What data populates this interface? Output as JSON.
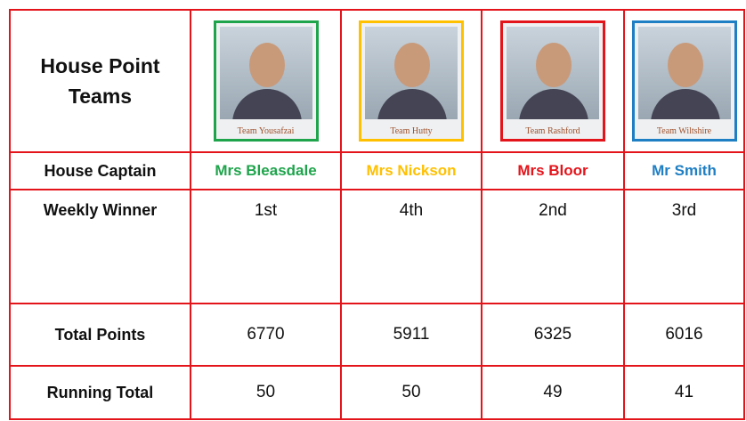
{
  "table": {
    "title": "House Point Teams",
    "teams": [
      {
        "photo_caption": "Team Yousafzai",
        "color": "#1ea44b"
      },
      {
        "photo_caption": "Team Hutty",
        "color": "#ffc000"
      },
      {
        "photo_caption": "Team Rashford",
        "color": "#e4141b"
      },
      {
        "photo_caption": "Team Wiltshire",
        "color": "#1f7fc4"
      }
    ],
    "rows": [
      {
        "label": "House Captain",
        "cells": [
          "Mrs Bleasdale",
          "Mrs Nickson",
          "Mrs Bloor",
          "Mr Smith"
        ]
      },
      {
        "label": "Weekly Winner",
        "cells": [
          "1st",
          "4th",
          "2nd",
          "3rd"
        ]
      },
      {
        "label": "Total Points",
        "cells": [
          6770,
          5911,
          6325,
          6016
        ]
      },
      {
        "label": "Running Total",
        "cells": [
          50,
          50,
          49,
          41
        ]
      }
    ]
  }
}
